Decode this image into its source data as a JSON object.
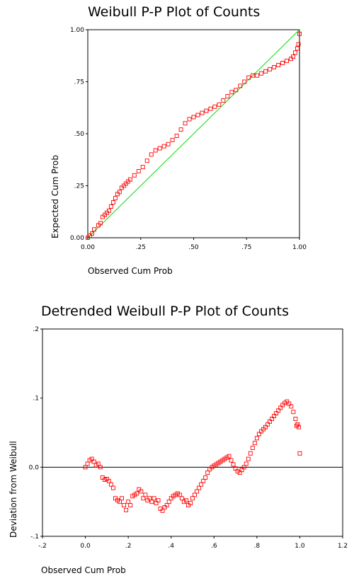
{
  "chart_data": [
    {
      "type": "scatter",
      "title": "Weibull P-P Plot of Counts",
      "xlabel": "Observed Cum Prob",
      "ylabel": "Expected Cum Prob",
      "xlim": [
        0,
        1
      ],
      "ylim": [
        0,
        1
      ],
      "xticks": [
        0,
        0.25,
        0.5,
        0.75,
        1
      ],
      "xtick_labels": [
        "0.00",
        ".25",
        ".50",
        ".75",
        "1.00"
      ],
      "yticks": [
        0,
        0.25,
        0.5,
        0.75,
        1
      ],
      "ytick_labels": [
        "0.00",
        ".25",
        ".50",
        ".75",
        "1.00"
      ],
      "reference_line": {
        "from": [
          0,
          0
        ],
        "to": [
          1,
          1
        ],
        "color": "#00dd00"
      },
      "marker_color": "#ff0000",
      "x": [
        0.0,
        0.01,
        0.02,
        0.03,
        0.05,
        0.06,
        0.07,
        0.08,
        0.09,
        0.1,
        0.11,
        0.12,
        0.13,
        0.14,
        0.15,
        0.16,
        0.17,
        0.18,
        0.19,
        0.2,
        0.22,
        0.24,
        0.26,
        0.28,
        0.3,
        0.32,
        0.34,
        0.36,
        0.38,
        0.4,
        0.42,
        0.44,
        0.46,
        0.48,
        0.5,
        0.52,
        0.54,
        0.56,
        0.58,
        0.6,
        0.62,
        0.64,
        0.66,
        0.68,
        0.7,
        0.72,
        0.74,
        0.76,
        0.78,
        0.8,
        0.82,
        0.84,
        0.86,
        0.88,
        0.9,
        0.92,
        0.94,
        0.96,
        0.97,
        0.98,
        0.99,
        0.995,
        1.0
      ],
      "y": [
        0.0,
        0.01,
        0.02,
        0.04,
        0.06,
        0.07,
        0.1,
        0.11,
        0.12,
        0.13,
        0.15,
        0.17,
        0.19,
        0.21,
        0.22,
        0.24,
        0.25,
        0.26,
        0.27,
        0.28,
        0.3,
        0.32,
        0.34,
        0.37,
        0.4,
        0.42,
        0.43,
        0.44,
        0.45,
        0.47,
        0.49,
        0.52,
        0.55,
        0.57,
        0.58,
        0.59,
        0.6,
        0.61,
        0.62,
        0.63,
        0.64,
        0.66,
        0.68,
        0.7,
        0.71,
        0.73,
        0.75,
        0.77,
        0.78,
        0.78,
        0.79,
        0.8,
        0.81,
        0.82,
        0.83,
        0.84,
        0.85,
        0.86,
        0.87,
        0.89,
        0.91,
        0.93,
        0.98
      ]
    },
    {
      "type": "scatter",
      "title": "Detrended Weibull P-P Plot of Counts",
      "xlabel": "Observed Cum Prob",
      "ylabel": "Deviation from Weibull",
      "xlim": [
        -0.2,
        1.2
      ],
      "ylim": [
        -0.1,
        0.2
      ],
      "xticks": [
        -0.2,
        0,
        0.2,
        0.4,
        0.6,
        0.8,
        1,
        1.2
      ],
      "xtick_labels": [
        "-.2",
        "0.0",
        ".2",
        ".4",
        ".6",
        ".8",
        "1.0",
        "1.2"
      ],
      "yticks": [
        -0.1,
        0,
        0.1,
        0.2
      ],
      "ytick_labels": [
        "-.1",
        "0.0",
        ".1",
        ".2"
      ],
      "reference_line": {
        "y": 0,
        "color": "#000000"
      },
      "marker_color": "#ff0000",
      "x": [
        0.0,
        0.01,
        0.02,
        0.03,
        0.04,
        0.05,
        0.06,
        0.07,
        0.08,
        0.09,
        0.1,
        0.11,
        0.12,
        0.13,
        0.14,
        0.15,
        0.16,
        0.17,
        0.18,
        0.19,
        0.2,
        0.21,
        0.22,
        0.23,
        0.24,
        0.25,
        0.26,
        0.27,
        0.28,
        0.29,
        0.3,
        0.31,
        0.32,
        0.33,
        0.34,
        0.35,
        0.36,
        0.37,
        0.38,
        0.39,
        0.4,
        0.41,
        0.42,
        0.43,
        0.44,
        0.45,
        0.46,
        0.47,
        0.48,
        0.49,
        0.5,
        0.51,
        0.52,
        0.53,
        0.54,
        0.55,
        0.56,
        0.57,
        0.58,
        0.59,
        0.6,
        0.61,
        0.62,
        0.63,
        0.64,
        0.65,
        0.66,
        0.67,
        0.68,
        0.69,
        0.7,
        0.71,
        0.72,
        0.73,
        0.74,
        0.75,
        0.76,
        0.77,
        0.78,
        0.79,
        0.8,
        0.81,
        0.82,
        0.83,
        0.84,
        0.85,
        0.86,
        0.87,
        0.88,
        0.89,
        0.9,
        0.91,
        0.92,
        0.93,
        0.94,
        0.95,
        0.96,
        0.97,
        0.98,
        0.985,
        0.99,
        0.995,
        1.0
      ],
      "y": [
        0.0,
        0.005,
        0.01,
        0.012,
        0.008,
        0.003,
        0.005,
        0.0,
        -0.015,
        -0.018,
        -0.017,
        -0.02,
        -0.025,
        -0.03,
        -0.045,
        -0.048,
        -0.05,
        -0.045,
        -0.055,
        -0.062,
        -0.05,
        -0.055,
        -0.042,
        -0.04,
        -0.038,
        -0.032,
        -0.035,
        -0.045,
        -0.04,
        -0.048,
        -0.045,
        -0.05,
        -0.045,
        -0.052,
        -0.048,
        -0.06,
        -0.063,
        -0.058,
        -0.055,
        -0.05,
        -0.045,
        -0.042,
        -0.04,
        -0.038,
        -0.04,
        -0.045,
        -0.05,
        -0.048,
        -0.055,
        -0.052,
        -0.045,
        -0.04,
        -0.035,
        -0.03,
        -0.025,
        -0.02,
        -0.015,
        -0.008,
        -0.003,
        0.0,
        0.002,
        0.004,
        0.006,
        0.008,
        0.01,
        0.012,
        0.014,
        0.016,
        0.01,
        0.004,
        -0.002,
        -0.006,
        -0.008,
        -0.004,
        0.0,
        0.005,
        0.012,
        0.02,
        0.028,
        0.035,
        0.042,
        0.048,
        0.052,
        0.055,
        0.058,
        0.062,
        0.066,
        0.07,
        0.074,
        0.078,
        0.082,
        0.086,
        0.09,
        0.093,
        0.095,
        0.092,
        0.088,
        0.08,
        0.07,
        0.06,
        0.062,
        0.058,
        0.02
      ]
    }
  ]
}
